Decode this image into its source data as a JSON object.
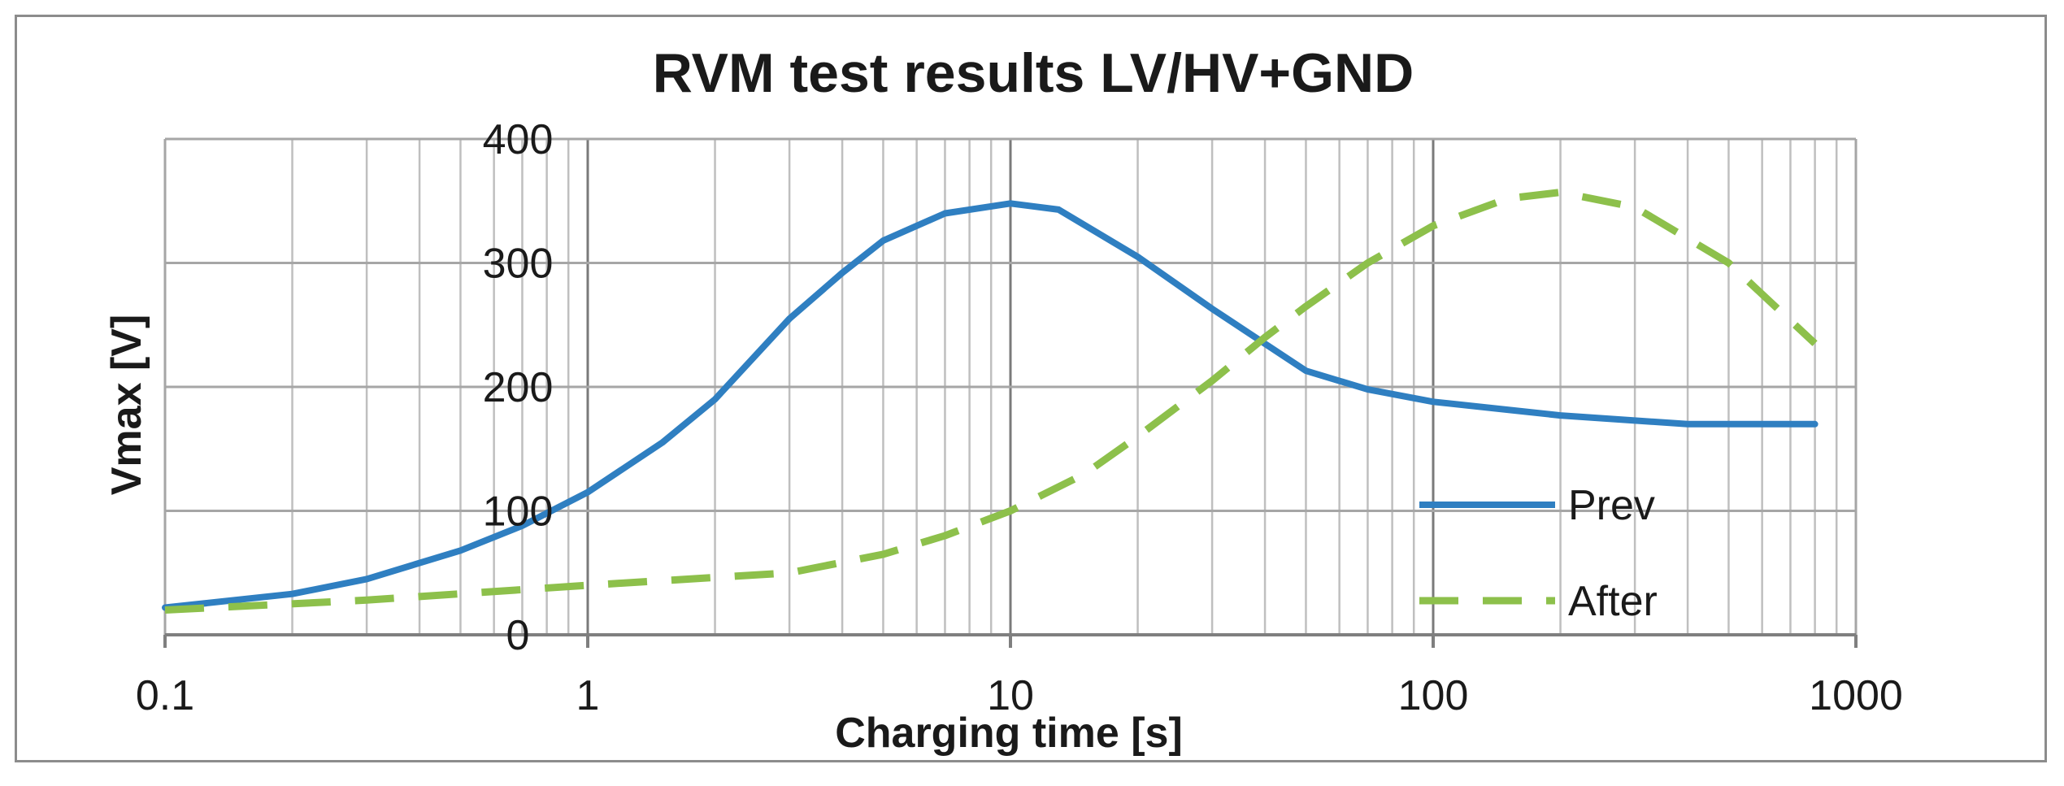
{
  "chart_data": {
    "type": "line",
    "title": "RVM test results LV/HV+GND",
    "xlabel": "Charging time [s]",
    "ylabel": "Vmax [V]",
    "x_scale": "log",
    "xlim": [
      0.1,
      1000
    ],
    "ylim": [
      0,
      400
    ],
    "x_ticks": [
      "0.1",
      "1",
      "10",
      "100",
      "1000"
    ],
    "y_ticks": [
      "0",
      "100",
      "200",
      "300",
      "400"
    ],
    "grid": true,
    "legend_position": "inside-right",
    "series": [
      {
        "name": "Prev",
        "style": "solid",
        "color": "#2f7fc1",
        "x": [
          0.1,
          0.2,
          0.3,
          0.5,
          0.7,
          1,
          1.5,
          2,
          3,
          4,
          5,
          7,
          10,
          13,
          20,
          30,
          50,
          70,
          100,
          200,
          400,
          800
        ],
        "y": [
          22,
          33,
          45,
          68,
          88,
          115,
          155,
          190,
          255,
          292,
          318,
          340,
          348,
          343,
          305,
          263,
          213,
          198,
          188,
          177,
          170,
          170
        ]
      },
      {
        "name": "After",
        "style": "dashed",
        "color": "#8dc04b",
        "x": [
          0.1,
          0.3,
          1,
          3,
          5,
          7,
          10,
          15,
          20,
          30,
          40,
          50,
          70,
          100,
          150,
          200,
          300,
          500,
          800
        ],
        "y": [
          20,
          28,
          40,
          50,
          65,
          80,
          100,
          130,
          160,
          205,
          240,
          265,
          300,
          330,
          352,
          357,
          345,
          300,
          235
        ]
      }
    ]
  }
}
